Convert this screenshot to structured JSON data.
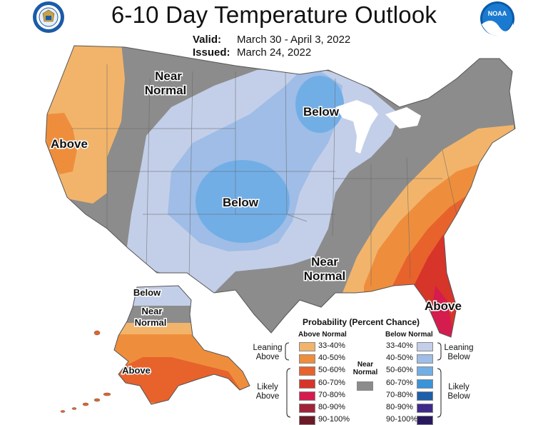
{
  "header": {
    "title": "6-10 Day Temperature Outlook",
    "valid_label": "Valid:",
    "valid_value": "March 30 - April 3, 2022",
    "issued_label": "Issued:",
    "issued_value": "March 24, 2022"
  },
  "logos": {
    "left_icon": "department-of-commerce-seal-icon",
    "right_icon": "noaa-logo-icon",
    "right_text": "NOAA"
  },
  "map_labels": {
    "near_normal_nw": [
      "Near",
      "Normal"
    ],
    "below_great_lakes": "Below",
    "above_west_coast": "Above",
    "below_central": "Below",
    "near_normal_south": [
      "Near",
      "Normal"
    ],
    "above_southeast": "Above",
    "alaska_below": "Below",
    "alaska_near_normal": [
      "Near",
      "Normal"
    ],
    "alaska_above": "Above"
  },
  "legend": {
    "title": "Probability (Percent Chance)",
    "above_header": "Above Normal",
    "below_header": "Below Normal",
    "leaning_above": [
      "Leaning",
      "Above"
    ],
    "likely_above": [
      "Likely",
      "Above"
    ],
    "leaning_below": [
      "Leaning",
      "Below"
    ],
    "likely_below": [
      "Likely",
      "Below"
    ],
    "near_normal": [
      "Near",
      "Normal"
    ],
    "near_normal_color": "#8c8c8c",
    "above": [
      {
        "label": "33-40%",
        "color": "#f2b46b"
      },
      {
        "label": "40-50%",
        "color": "#ee8e3c"
      },
      {
        "label": "50-60%",
        "color": "#e8622c"
      },
      {
        "label": "60-70%",
        "color": "#d7342a"
      },
      {
        "label": "70-80%",
        "color": "#d41c4e"
      },
      {
        "label": "80-90%",
        "color": "#a0233a"
      },
      {
        "label": "90-100%",
        "color": "#6b1a26"
      }
    ],
    "below": [
      {
        "label": "33-40%",
        "color": "#c3cfe9"
      },
      {
        "label": "40-50%",
        "color": "#9fbde6"
      },
      {
        "label": "50-60%",
        "color": "#72aee6"
      },
      {
        "label": "60-70%",
        "color": "#3a94d8"
      },
      {
        "label": "70-80%",
        "color": "#1d5fa8"
      },
      {
        "label": "80-90%",
        "color": "#3f2a8a"
      },
      {
        "label": "90-100%",
        "color": "#28185e"
      }
    ]
  },
  "colors": {
    "near_normal": "#8c8c8c",
    "lean_above": "#f2b46b",
    "above_40": "#ee8e3c",
    "above_50": "#e8622c",
    "above_60": "#d7342a",
    "above_70": "#d41c4e",
    "lean_below": "#c3cfe9",
    "below_40": "#9fbde6",
    "below_50": "#72aee6"
  }
}
